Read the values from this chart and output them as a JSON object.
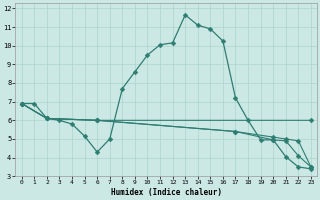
{
  "xlabel": "Humidex (Indice chaleur)",
  "background_color": "#cce8e4",
  "line_color": "#2e7d72",
  "grid_color": "#aad4cc",
  "xlim": [
    -0.5,
    23.5
  ],
  "ylim": [
    3,
    12.3
  ],
  "xticks": [
    0,
    1,
    2,
    3,
    4,
    5,
    6,
    7,
    8,
    9,
    10,
    11,
    12,
    13,
    14,
    15,
    16,
    17,
    18,
    19,
    20,
    21,
    22,
    23
  ],
  "yticks": [
    3,
    4,
    5,
    6,
    7,
    8,
    9,
    10,
    11,
    12
  ],
  "line1_x": [
    0,
    1,
    2,
    3,
    4,
    5,
    6,
    7,
    8,
    9,
    10,
    11,
    12,
    13,
    14,
    15,
    16,
    17,
    18,
    19,
    20,
    21,
    22,
    23
  ],
  "line1_y": [
    6.9,
    6.9,
    6.1,
    6.0,
    5.8,
    5.15,
    4.3,
    5.0,
    7.7,
    8.6,
    9.5,
    10.05,
    10.15,
    11.65,
    11.1,
    10.9,
    10.25,
    7.2,
    6.0,
    4.95,
    4.95,
    4.05,
    3.5,
    3.4
  ],
  "line2_x": [
    0,
    2,
    6,
    23
  ],
  "line2_y": [
    6.9,
    6.1,
    6.0,
    6.0
  ],
  "line3_x": [
    0,
    2,
    6,
    17,
    20,
    21,
    22,
    23
  ],
  "line3_y": [
    6.9,
    6.1,
    6.0,
    5.4,
    4.95,
    4.9,
    4.1,
    3.5
  ],
  "line4_x": [
    0,
    2,
    6,
    17,
    20,
    21,
    22,
    23
  ],
  "line4_y": [
    6.9,
    6.1,
    6.0,
    5.4,
    5.1,
    5.0,
    4.9,
    3.5
  ]
}
